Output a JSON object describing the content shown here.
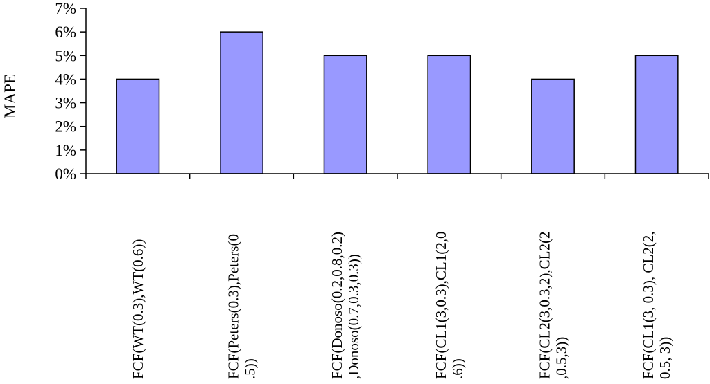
{
  "chart_data": {
    "type": "bar",
    "ylabel": "MAPE",
    "ylim": [
      0,
      7
    ],
    "y_ticks": [
      "0%",
      "1%",
      "2%",
      "3%",
      "4%",
      "5%",
      "6%",
      "7%"
    ],
    "categories": [
      [
        "FCF(WT(0.3),WT(0.6))"
      ],
      [
        "FCF(Peters(0.3),Peters(0",
        ".5))"
      ],
      [
        "FCF(Donoso(0.2,0.8,0.2)",
        ",Donoso(0.7,0.3,0.3))"
      ],
      [
        "FCF(CL1(3,0.3),CL1(2,0",
        ".6))"
      ],
      [
        "FCF(CL2(3,0.3,2),CL2(2",
        ",0.5,3))"
      ],
      [
        "FCF(CL1(3, 0.3), CL2(2,",
        "0.5, 3))"
      ]
    ],
    "values": [
      4,
      6,
      5,
      5,
      4,
      5
    ],
    "grid": false,
    "legend": "none",
    "colors": {
      "bar_fill": "#9999ff",
      "bar_stroke": "#000000",
      "axis": "#000000"
    }
  }
}
